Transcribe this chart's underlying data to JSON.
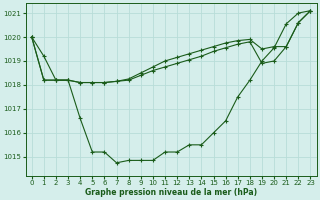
{
  "title": "Graphe pression niveau de la mer (hPa)",
  "bg_color": "#d5eeeb",
  "grid_color": "#b8ddd8",
  "line_color": "#1a5c1a",
  "xlim": [
    -0.5,
    23.5
  ],
  "ylim": [
    1014.2,
    1021.4
  ],
  "yticks": [
    1015,
    1016,
    1017,
    1018,
    1019,
    1020,
    1021
  ],
  "xticks": [
    0,
    1,
    2,
    3,
    4,
    5,
    6,
    7,
    8,
    9,
    10,
    11,
    12,
    13,
    14,
    15,
    16,
    17,
    18,
    19,
    20,
    21,
    22,
    23
  ],
  "line1_x": [
    0,
    1,
    2,
    3,
    4,
    5,
    6,
    7,
    8,
    9,
    10,
    11,
    12,
    13,
    14,
    15,
    16,
    17,
    18,
    19,
    20,
    21,
    22,
    23
  ],
  "line1_y": [
    1020.0,
    1019.2,
    1018.2,
    1018.2,
    1016.6,
    1015.2,
    1015.2,
    1014.75,
    1014.85,
    1014.85,
    1014.85,
    1015.2,
    1015.2,
    1015.5,
    1015.5,
    1016.0,
    1016.5,
    1017.5,
    1018.2,
    1019.0,
    1019.55,
    1020.55,
    1021.0,
    1021.1
  ],
  "line2_x": [
    0,
    1,
    2,
    3,
    4,
    5,
    6,
    7,
    8,
    9,
    10,
    11,
    12,
    13,
    14,
    15,
    16,
    17,
    18,
    19,
    20,
    21,
    22,
    23
  ],
  "line2_y": [
    1020.0,
    1018.2,
    1018.2,
    1018.2,
    1018.1,
    1018.1,
    1018.1,
    1018.15,
    1018.2,
    1018.4,
    1018.6,
    1018.75,
    1018.9,
    1019.05,
    1019.2,
    1019.4,
    1019.55,
    1019.7,
    1019.8,
    1018.9,
    1019.0,
    1019.6,
    1020.6,
    1021.1
  ],
  "line3_x": [
    0,
    1,
    2,
    3,
    4,
    5,
    6,
    7,
    8,
    9,
    10,
    11,
    12,
    13,
    14,
    15,
    16,
    17,
    18,
    19,
    20,
    21,
    22,
    23
  ],
  "line3_y": [
    1020.0,
    1018.2,
    1018.2,
    1018.2,
    1018.1,
    1018.1,
    1018.1,
    1018.15,
    1018.25,
    1018.5,
    1018.75,
    1019.0,
    1019.15,
    1019.3,
    1019.45,
    1019.6,
    1019.75,
    1019.85,
    1019.9,
    1019.5,
    1019.6,
    1019.6,
    1020.6,
    1021.1
  ]
}
